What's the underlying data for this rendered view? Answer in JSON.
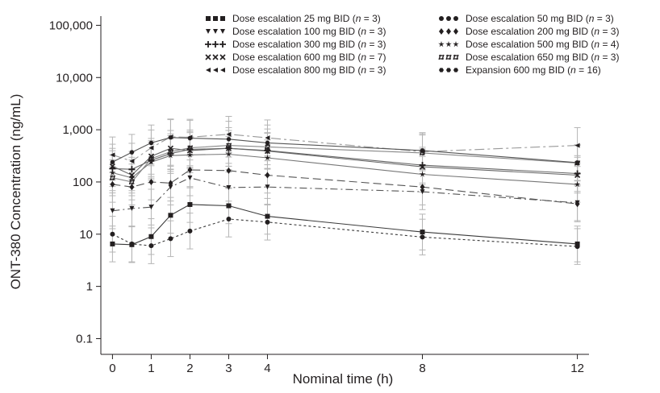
{
  "chart_data": {
    "type": "line",
    "title": "",
    "xlabel": "Nominal time (h)",
    "ylabel": "ONT-380 Concentration (ng/mL)",
    "yscale": "log",
    "xlim": [
      -0.3,
      12.3
    ],
    "ylim": [
      0.05,
      150000
    ],
    "x_ticks": [
      0,
      1,
      2,
      3,
      4,
      8,
      12
    ],
    "x_tick_labels": [
      "0",
      "1",
      "2",
      "3",
      "4",
      "8",
      "12"
    ],
    "y_ticks": [
      0.1,
      1,
      10,
      100,
      1000,
      10000,
      100000
    ],
    "y_tick_labels": [
      "0.1",
      "1",
      "10",
      "100",
      "1,000",
      "10,000",
      "100,000"
    ],
    "grid": false,
    "legend_position": "top-right",
    "series": [
      {
        "name": "Dose escalation 25 mg BID",
        "n": "3",
        "marker": "square",
        "dash": "solid",
        "color": "#3a3a3a",
        "x": [
          0,
          0.5,
          1,
          1.5,
          2,
          3,
          4,
          8,
          12
        ],
        "y": [
          6.5,
          6.3,
          9,
          23,
          37,
          35,
          22,
          11,
          6.5
        ]
      },
      {
        "name": "Dose escalation 50 mg BID",
        "n": "3",
        "marker": "circle",
        "dash": "3,3",
        "color": "#3a3a3a",
        "x": [
          0,
          0.5,
          1,
          1.5,
          2,
          3,
          4,
          8,
          12
        ],
        "y": [
          10,
          6.5,
          6,
          8.2,
          11.5,
          19.5,
          17,
          8.8,
          5.8
        ]
      },
      {
        "name": "Dose escalation 100 mg BID",
        "n": "3",
        "marker": "triangle-down",
        "dash": "9,4,2,4",
        "color": "#555555",
        "x": [
          0,
          0.5,
          1,
          1.5,
          2,
          3,
          4,
          8,
          12
        ],
        "y": [
          28,
          31,
          33,
          80,
          120,
          78,
          80,
          65,
          40
        ]
      },
      {
        "name": "Dose escalation 200 mg BID",
        "n": "3",
        "marker": "diamond",
        "dash": "10,5",
        "color": "#555555",
        "x": [
          0,
          0.5,
          1,
          1.5,
          2,
          3,
          4,
          8,
          12
        ],
        "y": [
          90,
          80,
          100,
          95,
          170,
          165,
          135,
          80,
          38
        ]
      },
      {
        "name": "Dose escalation 300 mg BID",
        "n": "3",
        "marker": "plus",
        "dash": "solid",
        "color": "#666666",
        "x": [
          0,
          0.5,
          1,
          1.5,
          2,
          3,
          4,
          8,
          12
        ],
        "y": [
          180,
          175,
          260,
          350,
          420,
          440,
          400,
          210,
          145
        ]
      },
      {
        "name": "Dose escalation 500 mg BID",
        "n": "4",
        "marker": "star",
        "dash": "solid",
        "color": "#777777",
        "x": [
          0,
          0.5,
          1,
          1.5,
          2,
          3,
          4,
          8,
          12
        ],
        "y": [
          150,
          120,
          240,
          320,
          330,
          340,
          290,
          140,
          90
        ]
      },
      {
        "name": "Dose escalation 600 mg BID",
        "n": "7",
        "marker": "x",
        "dash": "solid",
        "color": "#666666",
        "x": [
          0,
          0.5,
          1,
          1.5,
          2,
          3,
          4,
          8,
          12
        ],
        "y": [
          200,
          135,
          310,
          440,
          400,
          440,
          390,
          195,
          135
        ]
      },
      {
        "name": "Dose escalation 650 mg BID",
        "n": "3",
        "marker": "hash",
        "dash": "solid",
        "color": "#888888",
        "x": [
          0,
          0.5,
          1,
          1.5,
          2,
          3,
          4,
          8,
          12
        ],
        "y": [
          120,
          100,
          280,
          380,
          450,
          500,
          470,
          360,
          230
        ]
      },
      {
        "name": "Dose escalation 800 mg BID",
        "n": "3",
        "marker": "triangle-left",
        "dash": "12,4,3,4",
        "color": "#999999",
        "x": [
          0,
          0.5,
          1,
          1.5,
          2,
          3,
          4,
          8,
          12
        ],
        "y": [
          330,
          250,
          450,
          730,
          720,
          820,
          700,
          380,
          500
        ]
      },
      {
        "name": "Expansion 600 mg BID",
        "n": "16",
        "marker": "hexagon",
        "dash": "solid",
        "color": "#555555",
        "x": [
          0,
          0.5,
          1,
          1.5,
          2,
          3,
          4,
          8,
          12
        ],
        "y": [
          240,
          370,
          560,
          710,
          690,
          660,
          560,
          400,
          235
        ]
      }
    ]
  }
}
